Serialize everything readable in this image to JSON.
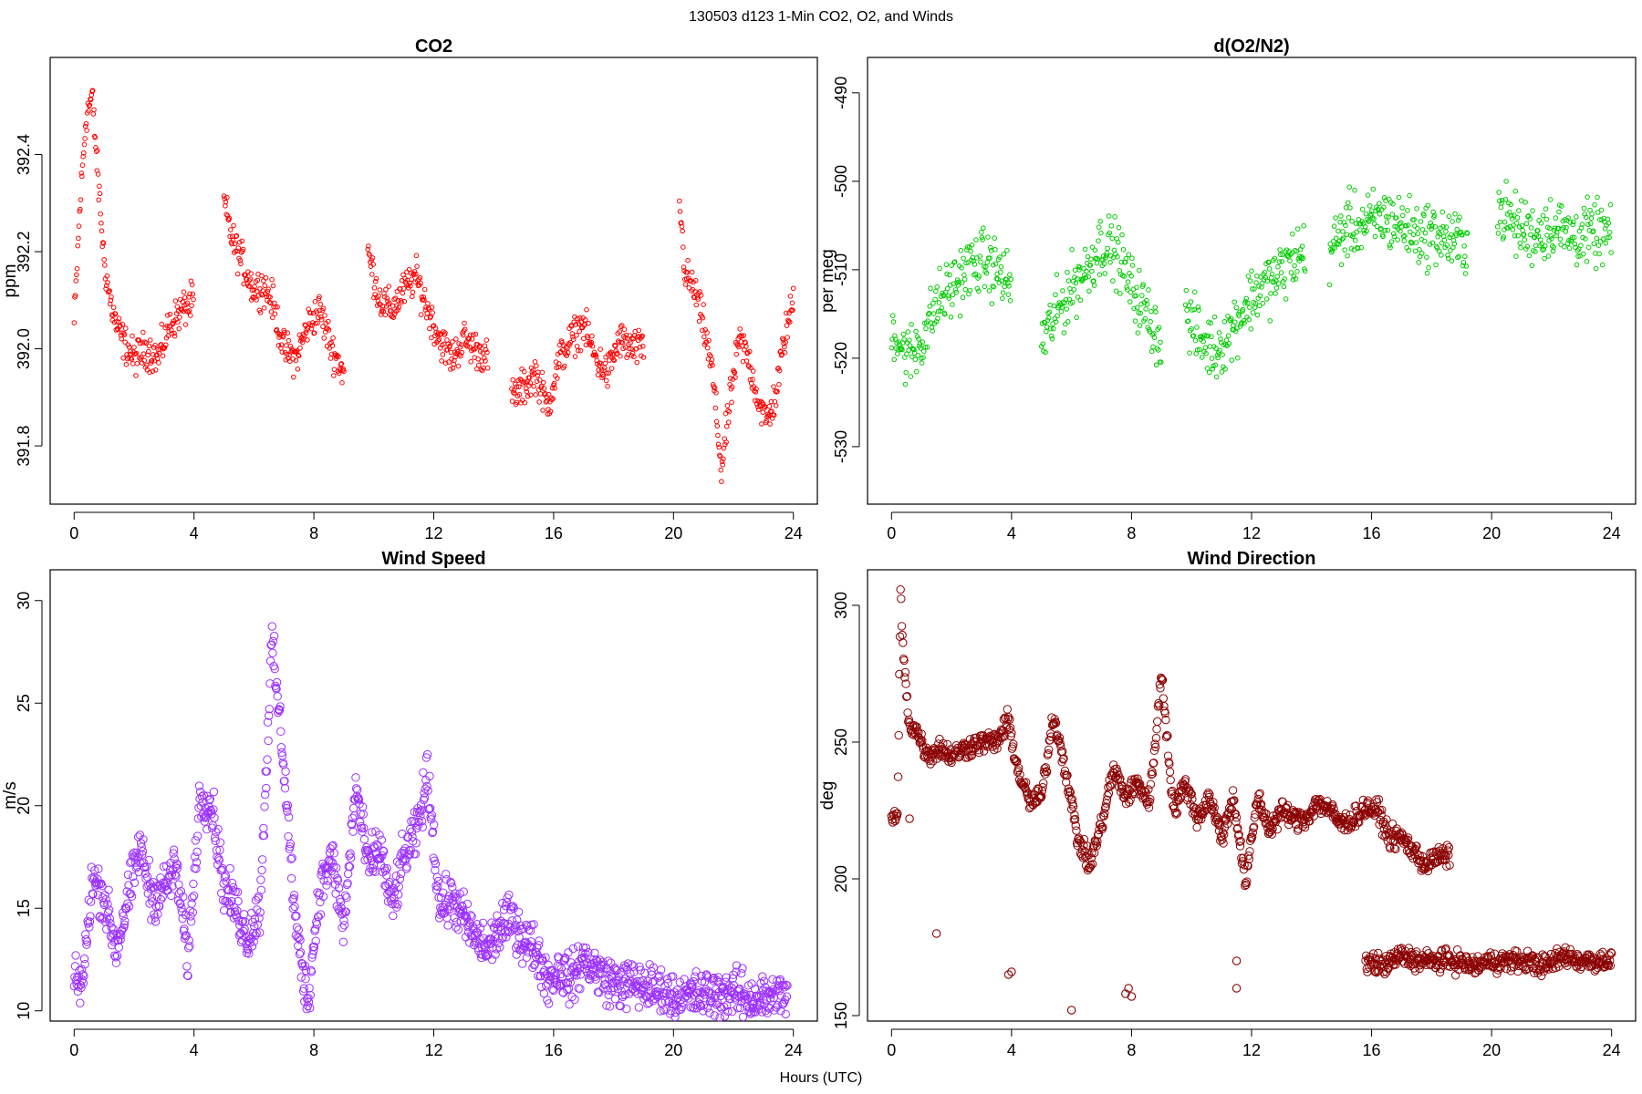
{
  "figure": {
    "suptitle": "130503   d123   1-Min CO2, O2, and Winds",
    "xlabel": "Hours (UTC)"
  },
  "chart_data": [
    {
      "type": "scatter",
      "title": "CO2",
      "ylabel": "ppm",
      "color": "#ff0000",
      "marker": "open-circle-small",
      "xlim": [
        -0.8,
        24.8
      ],
      "ylim": [
        391.68,
        392.6
      ],
      "xticks": [
        0,
        4,
        8,
        12,
        16,
        20,
        24
      ],
      "yticks": [
        391.8,
        392.0,
        392.2,
        392.4
      ],
      "ytick_labels": [
        "391.8",
        "392.0",
        "392.2",
        "392.4"
      ],
      "segments": [
        {
          "x": [
            0,
            0.2,
            0.4,
            0.6,
            0.8,
            1.0,
            1.2,
            1.4,
            1.6,
            2.0,
            2.4,
            2.8,
            3.2,
            3.6,
            4.0
          ],
          "y": [
            392.05,
            392.3,
            392.48,
            392.52,
            392.35,
            392.18,
            392.1,
            392.05,
            392.02,
            391.98,
            392.0,
            391.98,
            392.05,
            392.08,
            392.1
          ]
        },
        {
          "x": [
            5.0,
            5.3,
            5.6,
            6.0,
            6.3,
            6.6,
            7.0,
            7.4,
            7.8,
            8.2,
            8.6,
            9.0
          ],
          "y": [
            392.3,
            392.22,
            392.18,
            392.12,
            392.13,
            392.1,
            392.0,
            391.98,
            392.05,
            392.08,
            392.0,
            391.95
          ]
        },
        {
          "x": [
            9.8,
            10.2,
            10.6,
            11.0,
            11.4,
            11.8,
            12.2,
            12.6,
            13.0,
            13.4,
            13.8
          ],
          "y": [
            392.2,
            392.1,
            392.08,
            392.12,
            392.15,
            392.08,
            392.02,
            391.98,
            392.02,
            392.0,
            391.98
          ]
        },
        {
          "x": [
            14.6,
            15.0,
            15.4,
            15.8,
            16.2,
            16.6,
            17.0,
            17.4,
            17.8,
            18.2,
            18.6,
            19.0
          ],
          "y": [
            391.9,
            391.92,
            391.95,
            391.88,
            391.98,
            392.02,
            392.05,
            391.98,
            391.95,
            392.02,
            392.0,
            392.0
          ]
        },
        {
          "x": [
            20.2,
            20.4,
            20.7,
            21.0,
            21.3,
            21.6,
            21.9,
            22.2,
            22.5,
            22.8,
            23.1,
            23.4,
            23.7,
            24.0
          ],
          "y": [
            392.3,
            392.15,
            392.12,
            392.05,
            391.95,
            391.75,
            391.9,
            392.02,
            391.98,
            391.9,
            391.85,
            391.9,
            392.02,
            392.1
          ]
        }
      ]
    },
    {
      "type": "scatter",
      "title": "d(O2/N2)",
      "ylabel": "per meg",
      "color": "#00cc00",
      "marker": "open-circle-small",
      "xlim": [
        -0.8,
        24.8
      ],
      "ylim": [
        -536.5,
        -486
      ],
      "xticks": [
        0,
        4,
        8,
        12,
        16,
        20,
        24
      ],
      "yticks": [
        -530,
        -520,
        -510,
        -500,
        -490
      ],
      "ytick_labels": [
        "-530",
        "-520",
        "-510",
        "-500",
        "-490"
      ],
      "segments": [
        {
          "x": [
            0,
            0.5,
            1.0,
            1.5,
            2.0,
            2.5,
            3.0,
            3.5,
            4.0
          ],
          "y": [
            -516,
            -520,
            -518,
            -514,
            -512,
            -510,
            -509,
            -510,
            -512
          ]
        },
        {
          "x": [
            5.0,
            5.5,
            6.0,
            6.5,
            7.0,
            7.5,
            8.0,
            8.5,
            9.0
          ],
          "y": [
            -518,
            -515,
            -512,
            -510,
            -507,
            -508,
            -512,
            -515,
            -518
          ]
        },
        {
          "x": [
            9.8,
            10.3,
            10.8,
            11.3,
            11.8,
            12.3,
            12.8,
            13.3,
            13.8
          ],
          "y": [
            -515,
            -518,
            -519,
            -517,
            -514,
            -512,
            -511,
            -509,
            -508
          ]
        },
        {
          "x": [
            14.6,
            15.2,
            15.8,
            16.4,
            17.0,
            17.6,
            18.2,
            18.8,
            19.2
          ],
          "y": [
            -508,
            -505,
            -505,
            -504,
            -505,
            -506,
            -506,
            -507,
            -507
          ]
        },
        {
          "x": [
            20.2,
            20.8,
            21.4,
            22.0,
            22.6,
            23.2,
            23.8,
            24.0
          ],
          "y": [
            -503,
            -505,
            -506,
            -505,
            -506,
            -506,
            -506,
            -506
          ]
        }
      ]
    },
    {
      "type": "scatter",
      "title": "Wind Speed",
      "ylabel": "m/s",
      "color": "#9b30ff",
      "marker": "open-circle",
      "xlim": [
        -0.8,
        24.8
      ],
      "ylim": [
        9.5,
        31.5
      ],
      "xticks": [
        0,
        4,
        8,
        12,
        16,
        20,
        24
      ],
      "yticks": [
        10,
        15,
        20,
        25,
        30
      ],
      "ytick_labels": [
        "10",
        "15",
        "20",
        "25",
        "30"
      ],
      "segments": [
        {
          "x": [
            0,
            0.3,
            0.6,
            1.0,
            1.4,
            1.8,
            2.2,
            2.6,
            3.0,
            3.4,
            3.8,
            4.2,
            4.6,
            5.0,
            5.4,
            5.8,
            6.2,
            6.6,
            7.0,
            7.4,
            7.8,
            8.2,
            8.6,
            9.0,
            9.4,
            9.8,
            10.2,
            10.6,
            11.0,
            11.4,
            11.8,
            12.2,
            12.6,
            13.0,
            13.4,
            13.8,
            14.2,
            14.6,
            15.0,
            15.4,
            15.8,
            16.2,
            16.6,
            17.0,
            17.4,
            17.8,
            18.2,
            18.6,
            19.0,
            19.4,
            19.8,
            20.2,
            20.6,
            21.0,
            21.4,
            21.8,
            22.2,
            22.6,
            23.0,
            23.4,
            23.8
          ],
          "y": [
            11.3,
            11.5,
            16.5,
            15.5,
            13.0,
            15.5,
            18.0,
            15.5,
            16.0,
            17.0,
            12.5,
            20.5,
            20.0,
            16.0,
            15.0,
            13.5,
            15.0,
            28.0,
            22.0,
            14.0,
            10.5,
            16.0,
            17.5,
            14.0,
            21.0,
            17.0,
            18.0,
            15.0,
            17.5,
            18.5,
            21.5,
            15.0,
            15.5,
            14.5,
            13.5,
            13.0,
            14.0,
            14.5,
            13.5,
            13.0,
            11.5,
            12.0,
            11.5,
            12.5,
            12.0,
            11.5,
            11.3,
            11.3,
            11.2,
            11.0,
            10.8,
            10.6,
            10.7,
            10.8,
            10.8,
            10.9,
            10.8,
            10.6,
            10.6,
            10.6,
            10.8
          ]
        }
      ]
    },
    {
      "type": "scatter",
      "title": "Wind Direction",
      "ylabel": "deg",
      "color": "#8b0000",
      "marker": "open-circle",
      "xlim": [
        -0.8,
        24.8
      ],
      "ylim": [
        148,
        313
      ],
      "xticks": [
        0,
        4,
        8,
        12,
        16,
        20,
        24
      ],
      "yticks": [
        150,
        200,
        250,
        300
      ],
      "ytick_labels": [
        "150",
        "200",
        "250",
        "300"
      ],
      "segments": [
        {
          "x": [
            0,
            0.2,
            0.3,
            0.4,
            0.6,
            0.8,
            1.2,
            1.6,
            2.0,
            2.5,
            3.0,
            3.5,
            3.9,
            4.2,
            4.6,
            5.0,
            5.4,
            5.8,
            6.2,
            6.6,
            7.0,
            7.4,
            7.8,
            8.2,
            8.6,
            9.0,
            9.4,
            9.8,
            10.2,
            10.6,
            11.0,
            11.4,
            11.8,
            12.2,
            12.6,
            13.0,
            13.4,
            13.8,
            14.2,
            14.6,
            15.0,
            15.4,
            15.8,
            16.2,
            16.6,
            17.0,
            17.4,
            17.8,
            18.2,
            18.6
          ],
          "y": [
            222,
            222,
            305,
            280,
            256,
            255,
            245,
            248,
            245,
            248,
            250,
            250,
            258,
            240,
            228,
            230,
            260,
            240,
            215,
            205,
            220,
            240,
            230,
            235,
            228,
            275,
            225,
            235,
            222,
            230,
            215,
            230,
            198,
            230,
            218,
            225,
            222,
            222,
            228,
            225,
            220,
            222,
            226,
            225,
            215,
            215,
            210,
            205,
            208,
            208
          ]
        },
        {
          "x": [
            15.8,
            16.4,
            17.0,
            17.6,
            18.2,
            18.8,
            19.4,
            20.0,
            20.6,
            21.2,
            21.8,
            22.4,
            23.0,
            23.6,
            24.0
          ],
          "y": [
            170,
            168,
            172,
            170,
            170,
            170,
            168,
            170,
            170,
            170,
            168,
            172,
            170,
            170,
            171
          ]
        },
        {
          "x": [
            0.6,
            1.5,
            3.9,
            4.0,
            6.0,
            7.8,
            7.9,
            8.0,
            11.5,
            11.5
          ],
          "y": [
            222,
            180,
            165,
            166,
            152,
            158,
            160,
            157,
            170,
            160
          ]
        }
      ]
    }
  ]
}
